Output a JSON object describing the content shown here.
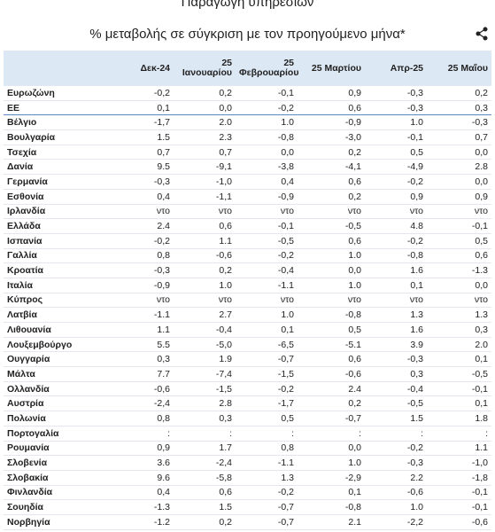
{
  "header": {
    "title": "Παραγωγή υπηρεσιών",
    "subtitle": "% μεταβολής σε σύγκριση με τον προηγούμενο μήνα*"
  },
  "table": {
    "columns": [
      "Δεκ-24",
      "25 Ιανουαρίου",
      "25 Φεβρουαρίου",
      "25 Μαρτίου",
      "Απρ-25",
      "25 Μαΐου"
    ],
    "rows": [
      [
        "Ευρωζώνη",
        "-0,2",
        "0,2",
        "-0,1",
        "0,9",
        "-0,3",
        "0,2"
      ],
      [
        "ΕΕ",
        "0,1",
        "0,0",
        "-0,2",
        "0,6",
        "-0,3",
        "0,3"
      ],
      [
        "Βέλγιο",
        "-1,7",
        "2.0",
        "1.0",
        "-0,9",
        "1.0",
        "-0,3"
      ],
      [
        "Βουλγαρία",
        "1.5",
        "2.3",
        "-0,8",
        "-3,0",
        "-0,1",
        "0,7"
      ],
      [
        "Τσεχία",
        "0,7",
        "0,7",
        "0,0",
        "0,2",
        "0,5",
        "0,0"
      ],
      [
        "Δανία",
        "9.5",
        "-9,1",
        "-3,8",
        "-4,1",
        "-4,9",
        "2.8"
      ],
      [
        "Γερμανία",
        "-0,3",
        "-1,0",
        "0,4",
        "0,6",
        "-0,2",
        "0,0"
      ],
      [
        "Εσθονία",
        "0,4",
        "-1,1",
        "-0,9",
        "0,2",
        "0,9",
        "0,9"
      ],
      [
        "Ιρλανδία",
        "ντο",
        "ντο",
        "ντο",
        "ντο",
        "ντο",
        "ντο"
      ],
      [
        "Ελλάδα",
        "2.4",
        "0,6",
        "-0,1",
        "-0,5",
        "4.8",
        "-0,1"
      ],
      [
        "Ισπανία",
        "-0,2",
        "1.1",
        "-0,5",
        "0,6",
        "-0,2",
        "0,5"
      ],
      [
        "Γαλλία",
        "0,8",
        "-0,6",
        "-0,2",
        "1.0",
        "-0,8",
        "0,6"
      ],
      [
        "Κροατία",
        "-0,3",
        "0,2",
        "-0,4",
        "0,0",
        "1.6",
        "-1.3"
      ],
      [
        "Ιταλία",
        "-0,9",
        "1.0",
        "-1.1",
        "1.0",
        "0,1",
        "0,0"
      ],
      [
        "Κύπρος",
        "ντο",
        "ντο",
        "ντο",
        "ντο",
        "ντο",
        "ντο"
      ],
      [
        "Λατβία",
        "-1.1",
        "2.7",
        "1.0",
        "-0,8",
        "1.3",
        "1.3"
      ],
      [
        "Λιθουανία",
        "1.1",
        "-0,4",
        "0,1",
        "0,5",
        "1.6",
        "0,3"
      ],
      [
        "Λουξεμβούργο",
        "5.5",
        "-5,0",
        "-6,5",
        "-5.1",
        "3.9",
        "2.0"
      ],
      [
        "Ουγγαρία",
        "0,3",
        "1.9",
        "-0,7",
        "0,6",
        "-0,3",
        "0,1"
      ],
      [
        "Μάλτα",
        "7.7",
        "-7,4",
        "-1,5",
        "-0,6",
        "0,3",
        "-0,5"
      ],
      [
        "Ολλανδία",
        "-0,6",
        "-1,5",
        "-0,2",
        "2.4",
        "-0,4",
        "-0,1"
      ],
      [
        "Αυστρία",
        "-2,4",
        "2.8",
        "-1,7",
        "0,2",
        "-0,5",
        "0,1"
      ],
      [
        "Πολωνία",
        "0,8",
        "0,3",
        "0,5",
        "-0,7",
        "1.5",
        "1.8"
      ],
      [
        "Πορτογαλία",
        ":",
        ":",
        ":",
        ":",
        ":",
        ":"
      ],
      [
        "Ρουμανία",
        "0,9",
        "1.7",
        "0,8",
        "0,0",
        "-0,2",
        "1.1"
      ],
      [
        "Σλοβενία",
        "3.6",
        "-2,4",
        "-1.1",
        "1.0",
        "-0,3",
        "-1,0"
      ],
      [
        "Σλοβακία",
        "9.6",
        "-5,8",
        "1.3",
        "-2,9",
        "2.2",
        "-1,8"
      ],
      [
        "Φινλανδία",
        "0,4",
        "0,6",
        "-0,2",
        "0,1",
        "-0,6",
        "-0,1"
      ],
      [
        "Σουηδία",
        "-1.3",
        "1.5",
        "-0,7",
        "-0,8",
        "1.0",
        "-0,1"
      ],
      [
        "Νορβηγία",
        "-1.2",
        "0,2",
        "-0,7",
        "2.1",
        "-2,2",
        "-0,6"
      ]
    ]
  }
}
